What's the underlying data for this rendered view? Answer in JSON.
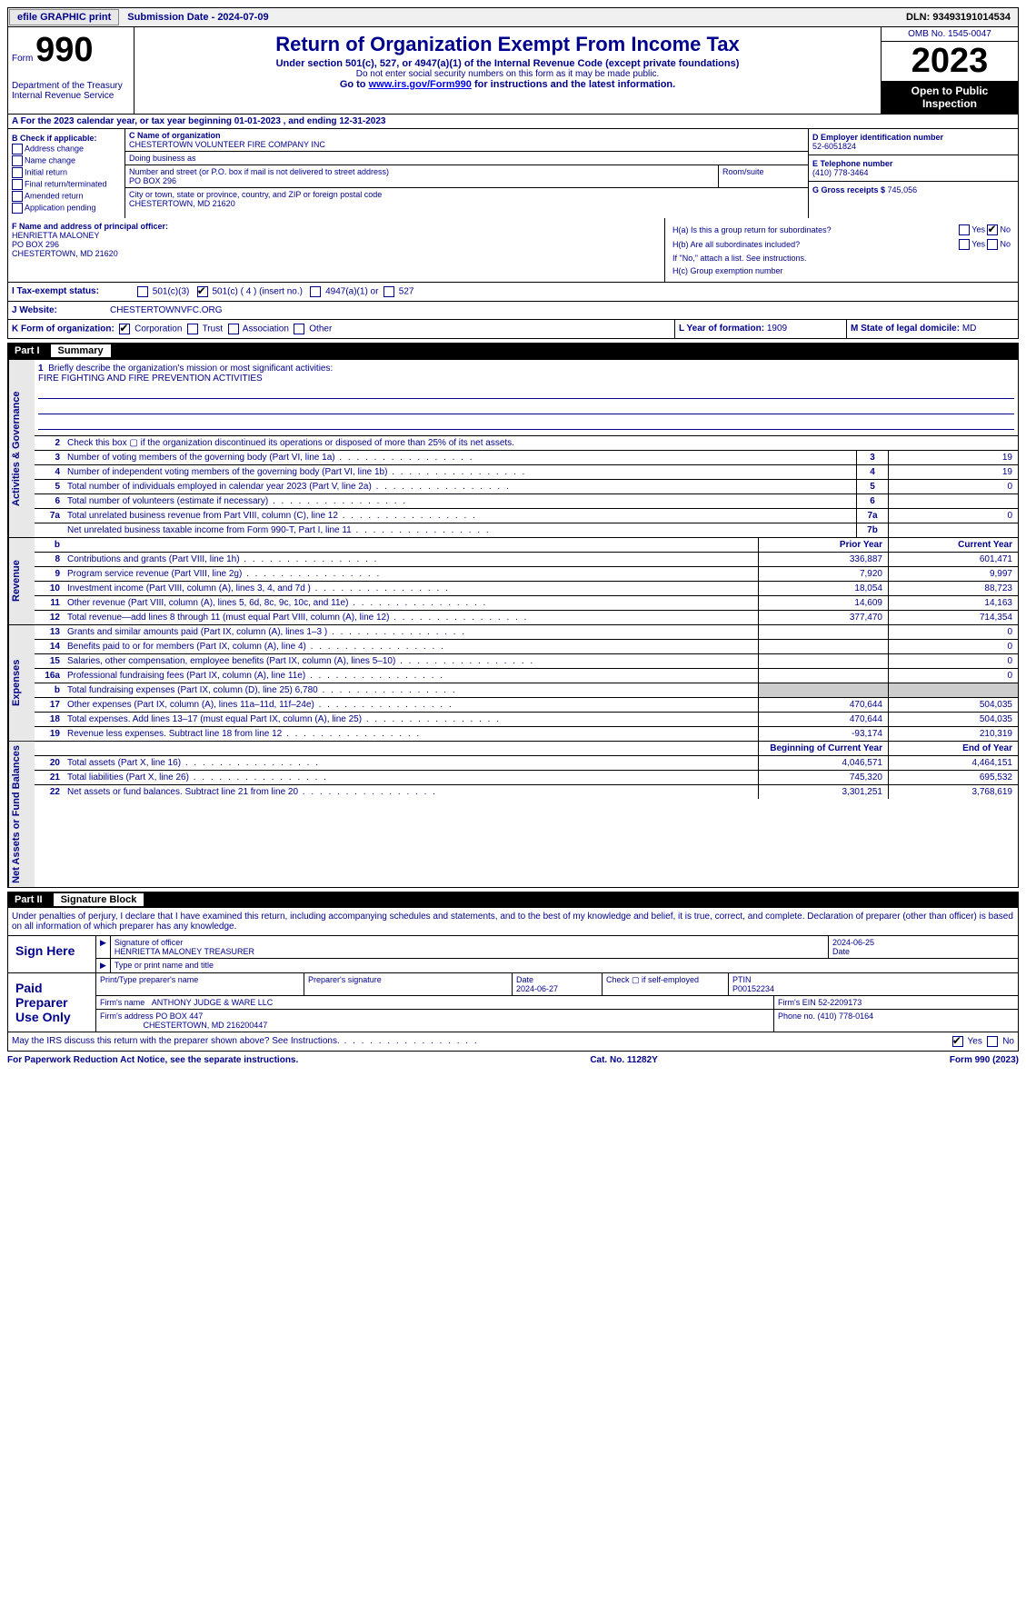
{
  "topbar": {
    "efile": "efile GRAPHIC print",
    "submission": "Submission Date - 2024-07-09",
    "dln": "DLN: 93493191014534"
  },
  "header": {
    "form_label": "Form",
    "form_num": "990",
    "title": "Return of Organization Exempt From Income Tax",
    "subtitle": "Under section 501(c), 527, or 4947(a)(1) of the Internal Revenue Code (except private foundations)",
    "note1": "Do not enter social security numbers on this form as it may be made public.",
    "note2_pre": "Go to ",
    "note2_link": "www.irs.gov/Form990",
    "note2_post": " for instructions and the latest information.",
    "dept": "Department of the Treasury\nInternal Revenue Service",
    "omb": "OMB No. 1545-0047",
    "year": "2023",
    "open": "Open to Public Inspection"
  },
  "rowA": "A For the 2023 calendar year, or tax year beginning 01-01-2023    , and ending 12-31-2023",
  "colB": {
    "title": "B Check if applicable:",
    "items": [
      "Address change",
      "Name change",
      "Initial return",
      "Final return/terminated",
      "Amended return",
      "Application pending"
    ]
  },
  "colC": {
    "name_lbl": "C Name of organization",
    "name": "CHESTERTOWN VOLUNTEER FIRE COMPANY INC",
    "dba_lbl": "Doing business as",
    "dba": "",
    "addr_lbl": "Number and street (or P.O. box if mail is not delivered to street address)",
    "addr": "PO BOX 296",
    "room_lbl": "Room/suite",
    "city_lbl": "City or town, state or province, country, and ZIP or foreign postal code",
    "city": "CHESTERTOWN, MD  21620"
  },
  "colD": {
    "ein_lbl": "D Employer identification number",
    "ein": "52-6051824",
    "tel_lbl": "E Telephone number",
    "tel": "(410) 778-3464",
    "gross_lbl": "G Gross receipts $ ",
    "gross": "745,056"
  },
  "colF": {
    "lbl": "F  Name and address of principal officer:",
    "name": "HENRIETTA MALONEY",
    "addr1": "PO BOX 296",
    "addr2": "CHESTERTOWN, MD  21620"
  },
  "colH": {
    "ha_lbl": "H(a)  Is this a group return for subordinates?",
    "hb_lbl": "H(b)  Are all subordinates included?",
    "hb_note": "If \"No,\" attach a list. See instructions.",
    "hc_lbl": "H(c)  Group exemption number ",
    "yes": "Yes",
    "no": "No"
  },
  "taxexempt": {
    "lbl": "I   Tax-exempt status:",
    "o1": "501(c)(3)",
    "o2": "501(c) ( 4 ) (insert no.)",
    "o3": "4947(a)(1) or",
    "o4": "527"
  },
  "website": {
    "lbl": "J   Website: ",
    "val": "CHESTERTOWNVFC.ORG"
  },
  "formorg": {
    "lbl": "K Form of organization:",
    "o1": "Corporation",
    "o2": "Trust",
    "o3": "Association",
    "o4": "Other",
    "yof_lbl": "L Year of formation: ",
    "yof": "1909",
    "state_lbl": "M State of legal domicile: ",
    "state": "MD"
  },
  "part1": {
    "num": "Part I",
    "title": "Summary"
  },
  "sections": {
    "s1": "Activities & Governance",
    "s2": "Revenue",
    "s3": "Expenses",
    "s4": "Net Assets or Fund Balances"
  },
  "mission": {
    "q": "Briefly describe the organization's mission or most significant activities:",
    "a": "FIRE FIGHTING AND FIRE PREVENTION ACTIVITIES"
  },
  "gov_rows": [
    {
      "n": "2",
      "d": "Check this box ▢ if the organization discontinued its operations or disposed of more than 25% of its net assets."
    },
    {
      "n": "3",
      "d": "Number of voting members of the governing body (Part VI, line 1a)",
      "box": "3",
      "v": "19"
    },
    {
      "n": "4",
      "d": "Number of independent voting members of the governing body (Part VI, line 1b)",
      "box": "4",
      "v": "19"
    },
    {
      "n": "5",
      "d": "Total number of individuals employed in calendar year 2023 (Part V, line 2a)",
      "box": "5",
      "v": "0"
    },
    {
      "n": "6",
      "d": "Total number of volunteers (estimate if necessary)",
      "box": "6",
      "v": ""
    },
    {
      "n": "7a",
      "d": "Total unrelated business revenue from Part VIII, column (C), line 12",
      "box": "7a",
      "v": "0"
    },
    {
      "n": "",
      "d": "Net unrelated business taxable income from Form 990-T, Part I, line 11",
      "box": "7b",
      "v": ""
    }
  ],
  "cols": {
    "b": "b",
    "prior": "Prior Year",
    "curr": "Current Year"
  },
  "rev_rows": [
    {
      "n": "8",
      "d": "Contributions and grants (Part VIII, line 1h)",
      "p": "336,887",
      "c": "601,471"
    },
    {
      "n": "9",
      "d": "Program service revenue (Part VIII, line 2g)",
      "p": "7,920",
      "c": "9,997"
    },
    {
      "n": "10",
      "d": "Investment income (Part VIII, column (A), lines 3, 4, and 7d )",
      "p": "18,054",
      "c": "88,723"
    },
    {
      "n": "11",
      "d": "Other revenue (Part VIII, column (A), lines 5, 6d, 8c, 9c, 10c, and 11e)",
      "p": "14,609",
      "c": "14,163"
    },
    {
      "n": "12",
      "d": "Total revenue—add lines 8 through 11 (must equal Part VIII, column (A), line 12)",
      "p": "377,470",
      "c": "714,354"
    }
  ],
  "exp_rows": [
    {
      "n": "13",
      "d": "Grants and similar amounts paid (Part IX, column (A), lines 1–3 )",
      "p": "",
      "c": "0"
    },
    {
      "n": "14",
      "d": "Benefits paid to or for members (Part IX, column (A), line 4)",
      "p": "",
      "c": "0"
    },
    {
      "n": "15",
      "d": "Salaries, other compensation, employee benefits (Part IX, column (A), lines 5–10)",
      "p": "",
      "c": "0"
    },
    {
      "n": "16a",
      "d": "Professional fundraising fees (Part IX, column (A), line 11e)",
      "p": "",
      "c": "0"
    },
    {
      "n": "b",
      "d": "Total fundraising expenses (Part IX, column (D), line 25) 6,780",
      "p": "SHADE",
      "c": "SHADE"
    },
    {
      "n": "17",
      "d": "Other expenses (Part IX, column (A), lines 11a–11d, 11f–24e)",
      "p": "470,644",
      "c": "504,035"
    },
    {
      "n": "18",
      "d": "Total expenses. Add lines 13–17 (must equal Part IX, column (A), line 25)",
      "p": "470,644",
      "c": "504,035"
    },
    {
      "n": "19",
      "d": "Revenue less expenses. Subtract line 18 from line 12",
      "p": "-93,174",
      "c": "210,319"
    }
  ],
  "net_cols": {
    "b": "Beginning of Current Year",
    "e": "End of Year"
  },
  "net_rows": [
    {
      "n": "20",
      "d": "Total assets (Part X, line 16)",
      "p": "4,046,571",
      "c": "4,464,151"
    },
    {
      "n": "21",
      "d": "Total liabilities (Part X, line 26)",
      "p": "745,320",
      "c": "695,532"
    },
    {
      "n": "22",
      "d": "Net assets or fund balances. Subtract line 21 from line 20",
      "p": "3,301,251",
      "c": "3,768,619"
    }
  ],
  "part2": {
    "num": "Part II",
    "title": "Signature Block"
  },
  "sig": {
    "penalty": "Under penalties of perjury, I declare that I have examined this return, including accompanying schedules and statements, and to the best of my knowledge and belief, it is true, correct, and complete. Declaration of preparer (other than officer) is based on all information of which preparer has any knowledge.",
    "sign_here": "Sign Here",
    "sig_officer_lbl": "Signature of officer",
    "officer": "HENRIETTA MALONEY TREASURER",
    "type_lbl": "Type or print name and title",
    "date_lbl": "Date",
    "date1": "2024-06-25",
    "paid": "Paid Preparer Use Only",
    "prep_name_lbl": "Print/Type preparer's name",
    "prep_sig_lbl": "Preparer's signature",
    "date2": "2024-06-27",
    "check_self": "Check ▢ if self-employed",
    "ptin_lbl": "PTIN",
    "ptin": "P00152234",
    "firm_name_lbl": "Firm's name ",
    "firm_name": "ANTHONY JUDGE & WARE LLC",
    "firm_ein_lbl": "Firm's EIN ",
    "firm_ein": "52-2209173",
    "firm_addr_lbl": "Firm's address ",
    "firm_addr1": "PO BOX 447",
    "firm_addr2": "CHESTERTOWN, MD  216200447",
    "phone_lbl": "Phone no. ",
    "phone": "(410) 778-0164",
    "discuss": "May the IRS discuss this return with the preparer shown above? See Instructions."
  },
  "footer": {
    "left": "For Paperwork Reduction Act Notice, see the separate instructions.",
    "mid": "Cat. No. 11282Y",
    "right": "Form 990 (2023)"
  }
}
